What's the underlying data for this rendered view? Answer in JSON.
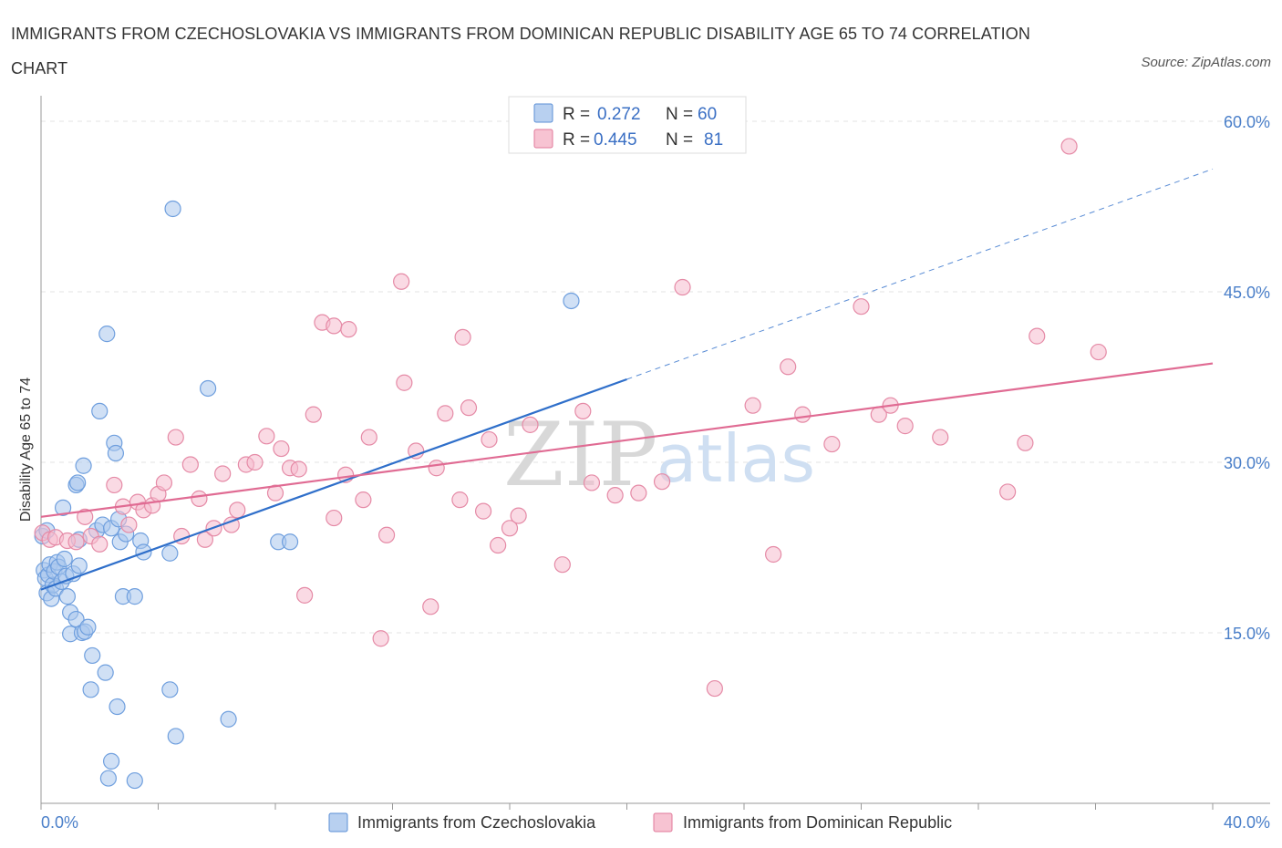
{
  "title": "IMMIGRANTS FROM CZECHOSLOVAKIA VS IMMIGRANTS FROM DOMINICAN REPUBLIC DISABILITY AGE 65 TO 74 CORRELATION CHART",
  "source": "Source: ZipAtlas.com",
  "watermark": {
    "zip": "ZIP",
    "atlas": "atlas"
  },
  "legend": {
    "r_label": "R =",
    "n_label": "N =",
    "rows": [
      {
        "r": "0.272",
        "n": "60",
        "color": "#5b8fd6",
        "fill": "#b8d0f0"
      },
      {
        "r": "0.445",
        "n": "81",
        "color": "#e07a9b",
        "fill": "#f7c3d2"
      }
    ]
  },
  "colors": {
    "series1_fill": "#a9c6ec",
    "series1_stroke": "#6f9fde",
    "series1_line": "#2f6fca",
    "series2_fill": "#f5bccd",
    "series2_stroke": "#e58aa6",
    "series2_line": "#e06b93",
    "grid": "#e3e3e3",
    "axis": "#999999"
  },
  "chart_data": {
    "type": "scatter",
    "title": "IMMIGRANTS FROM CZECHOSLOVAKIA VS IMMIGRANTS FROM DOMINICAN REPUBLIC DISABILITY AGE 65 TO 74 CORRELATION CHART",
    "xlabel": "",
    "ylabel": "Disability Age 65 to 74",
    "xlim": [
      0,
      40
    ],
    "ylim": [
      0,
      60
    ],
    "x_tick_labels": [
      "0.0%",
      "40.0%"
    ],
    "y_ticks": [
      15,
      30,
      45,
      60
    ],
    "y_tick_labels": [
      "15.0%",
      "30.0%",
      "45.0%",
      "60.0%"
    ],
    "grid": true,
    "legend_position": "top-center",
    "series": [
      {
        "name": "Immigrants from Czechoslovakia",
        "r": 0.272,
        "n": 60,
        "trend": {
          "x": [
            0,
            20
          ],
          "y": [
            18.8,
            37.3
          ],
          "dashed_to": [
            40,
            55.8
          ]
        },
        "points": [
          [
            0.1,
            20.5
          ],
          [
            0.15,
            19.8
          ],
          [
            0.2,
            18.5
          ],
          [
            0.25,
            20.1
          ],
          [
            0.3,
            21.0
          ],
          [
            0.35,
            18.0
          ],
          [
            0.4,
            19.2
          ],
          [
            0.45,
            20.4
          ],
          [
            0.5,
            18.9
          ],
          [
            0.55,
            21.2
          ],
          [
            0.6,
            20.8
          ],
          [
            0.7,
            19.5
          ],
          [
            0.75,
            26.0
          ],
          [
            0.8,
            21.5
          ],
          [
            0.85,
            20.0
          ],
          [
            0.9,
            18.2
          ],
          [
            1.0,
            16.8
          ],
          [
            1.0,
            14.9
          ],
          [
            1.1,
            20.2
          ],
          [
            1.2,
            16.2
          ],
          [
            1.2,
            28.0
          ],
          [
            1.25,
            28.2
          ],
          [
            1.3,
            20.9
          ],
          [
            1.3,
            23.2
          ],
          [
            1.4,
            15.0
          ],
          [
            1.45,
            29.7
          ],
          [
            1.5,
            15.1
          ],
          [
            1.6,
            15.5
          ],
          [
            1.7,
            10.0
          ],
          [
            1.75,
            13.0
          ],
          [
            1.9,
            24.0
          ],
          [
            2.0,
            34.5
          ],
          [
            2.1,
            24.5
          ],
          [
            2.2,
            11.5
          ],
          [
            2.25,
            41.3
          ],
          [
            2.3,
            2.2
          ],
          [
            2.4,
            24.2
          ],
          [
            2.4,
            3.7
          ],
          [
            2.5,
            31.7
          ],
          [
            2.55,
            30.8
          ],
          [
            2.6,
            8.5
          ],
          [
            2.65,
            25.0
          ],
          [
            2.7,
            23.0
          ],
          [
            2.8,
            18.2
          ],
          [
            2.9,
            23.7
          ],
          [
            3.2,
            18.2
          ],
          [
            3.2,
            2.0
          ],
          [
            3.4,
            23.1
          ],
          [
            3.5,
            22.1
          ],
          [
            4.4,
            22.0
          ],
          [
            4.4,
            10.0
          ],
          [
            4.5,
            52.3
          ],
          [
            4.6,
            5.9
          ],
          [
            5.7,
            36.5
          ],
          [
            6.4,
            7.4
          ],
          [
            8.1,
            23.0
          ],
          [
            8.5,
            23.0
          ],
          [
            18.1,
            44.2
          ],
          [
            0.05,
            23.5
          ],
          [
            0.2,
            24.0
          ]
        ]
      },
      {
        "name": "Immigrants from Dominican Republic",
        "r": 0.445,
        "n": 81,
        "trend": {
          "x": [
            0,
            40
          ],
          "y": [
            25.2,
            38.7
          ]
        },
        "points": [
          [
            0.05,
            23.8
          ],
          [
            0.3,
            23.2
          ],
          [
            0.5,
            23.4
          ],
          [
            0.9,
            23.1
          ],
          [
            1.2,
            23.0
          ],
          [
            1.5,
            25.2
          ],
          [
            1.7,
            23.5
          ],
          [
            2.0,
            22.8
          ],
          [
            2.5,
            28.0
          ],
          [
            2.8,
            26.1
          ],
          [
            3.0,
            24.5
          ],
          [
            3.3,
            26.5
          ],
          [
            3.5,
            25.8
          ],
          [
            3.8,
            26.2
          ],
          [
            4.0,
            27.2
          ],
          [
            4.2,
            28.2
          ],
          [
            4.6,
            32.2
          ],
          [
            4.8,
            23.5
          ],
          [
            5.1,
            29.8
          ],
          [
            5.4,
            26.8
          ],
          [
            5.6,
            23.2
          ],
          [
            5.9,
            24.2
          ],
          [
            6.2,
            29.0
          ],
          [
            6.5,
            24.5
          ],
          [
            6.7,
            25.8
          ],
          [
            7.0,
            29.8
          ],
          [
            7.3,
            30.0
          ],
          [
            7.7,
            32.3
          ],
          [
            8.0,
            27.3
          ],
          [
            8.2,
            31.2
          ],
          [
            8.5,
            29.5
          ],
          [
            8.8,
            29.4
          ],
          [
            9.0,
            18.3
          ],
          [
            9.3,
            34.2
          ],
          [
            9.6,
            42.3
          ],
          [
            10.0,
            42.0
          ],
          [
            10.0,
            25.1
          ],
          [
            10.4,
            28.9
          ],
          [
            10.5,
            41.7
          ],
          [
            11.0,
            26.7
          ],
          [
            11.2,
            32.2
          ],
          [
            11.6,
            14.5
          ],
          [
            11.8,
            23.6
          ],
          [
            12.3,
            45.9
          ],
          [
            12.4,
            37.0
          ],
          [
            12.8,
            31.0
          ],
          [
            13.3,
            17.3
          ],
          [
            13.5,
            29.5
          ],
          [
            13.8,
            34.3
          ],
          [
            14.3,
            26.7
          ],
          [
            14.4,
            41.0
          ],
          [
            14.6,
            34.8
          ],
          [
            15.1,
            25.7
          ],
          [
            15.3,
            32.0
          ],
          [
            15.6,
            22.7
          ],
          [
            16.0,
            24.2
          ],
          [
            16.3,
            25.3
          ],
          [
            16.7,
            33.3
          ],
          [
            17.8,
            21.0
          ],
          [
            18.5,
            34.5
          ],
          [
            18.8,
            28.2
          ],
          [
            19.6,
            27.1
          ],
          [
            20.4,
            27.3
          ],
          [
            21.2,
            28.3
          ],
          [
            21.9,
            45.4
          ],
          [
            23.0,
            10.1
          ],
          [
            24.3,
            35.0
          ],
          [
            25.0,
            21.9
          ],
          [
            25.5,
            38.4
          ],
          [
            26.0,
            34.2
          ],
          [
            27.0,
            31.6
          ],
          [
            28.0,
            43.7
          ],
          [
            28.6,
            34.2
          ],
          [
            29.0,
            35.0
          ],
          [
            29.5,
            33.2
          ],
          [
            30.7,
            32.2
          ],
          [
            33.0,
            27.4
          ],
          [
            33.6,
            31.7
          ],
          [
            34.0,
            41.1
          ],
          [
            35.1,
            57.8
          ],
          [
            36.1,
            39.7
          ]
        ]
      }
    ]
  }
}
